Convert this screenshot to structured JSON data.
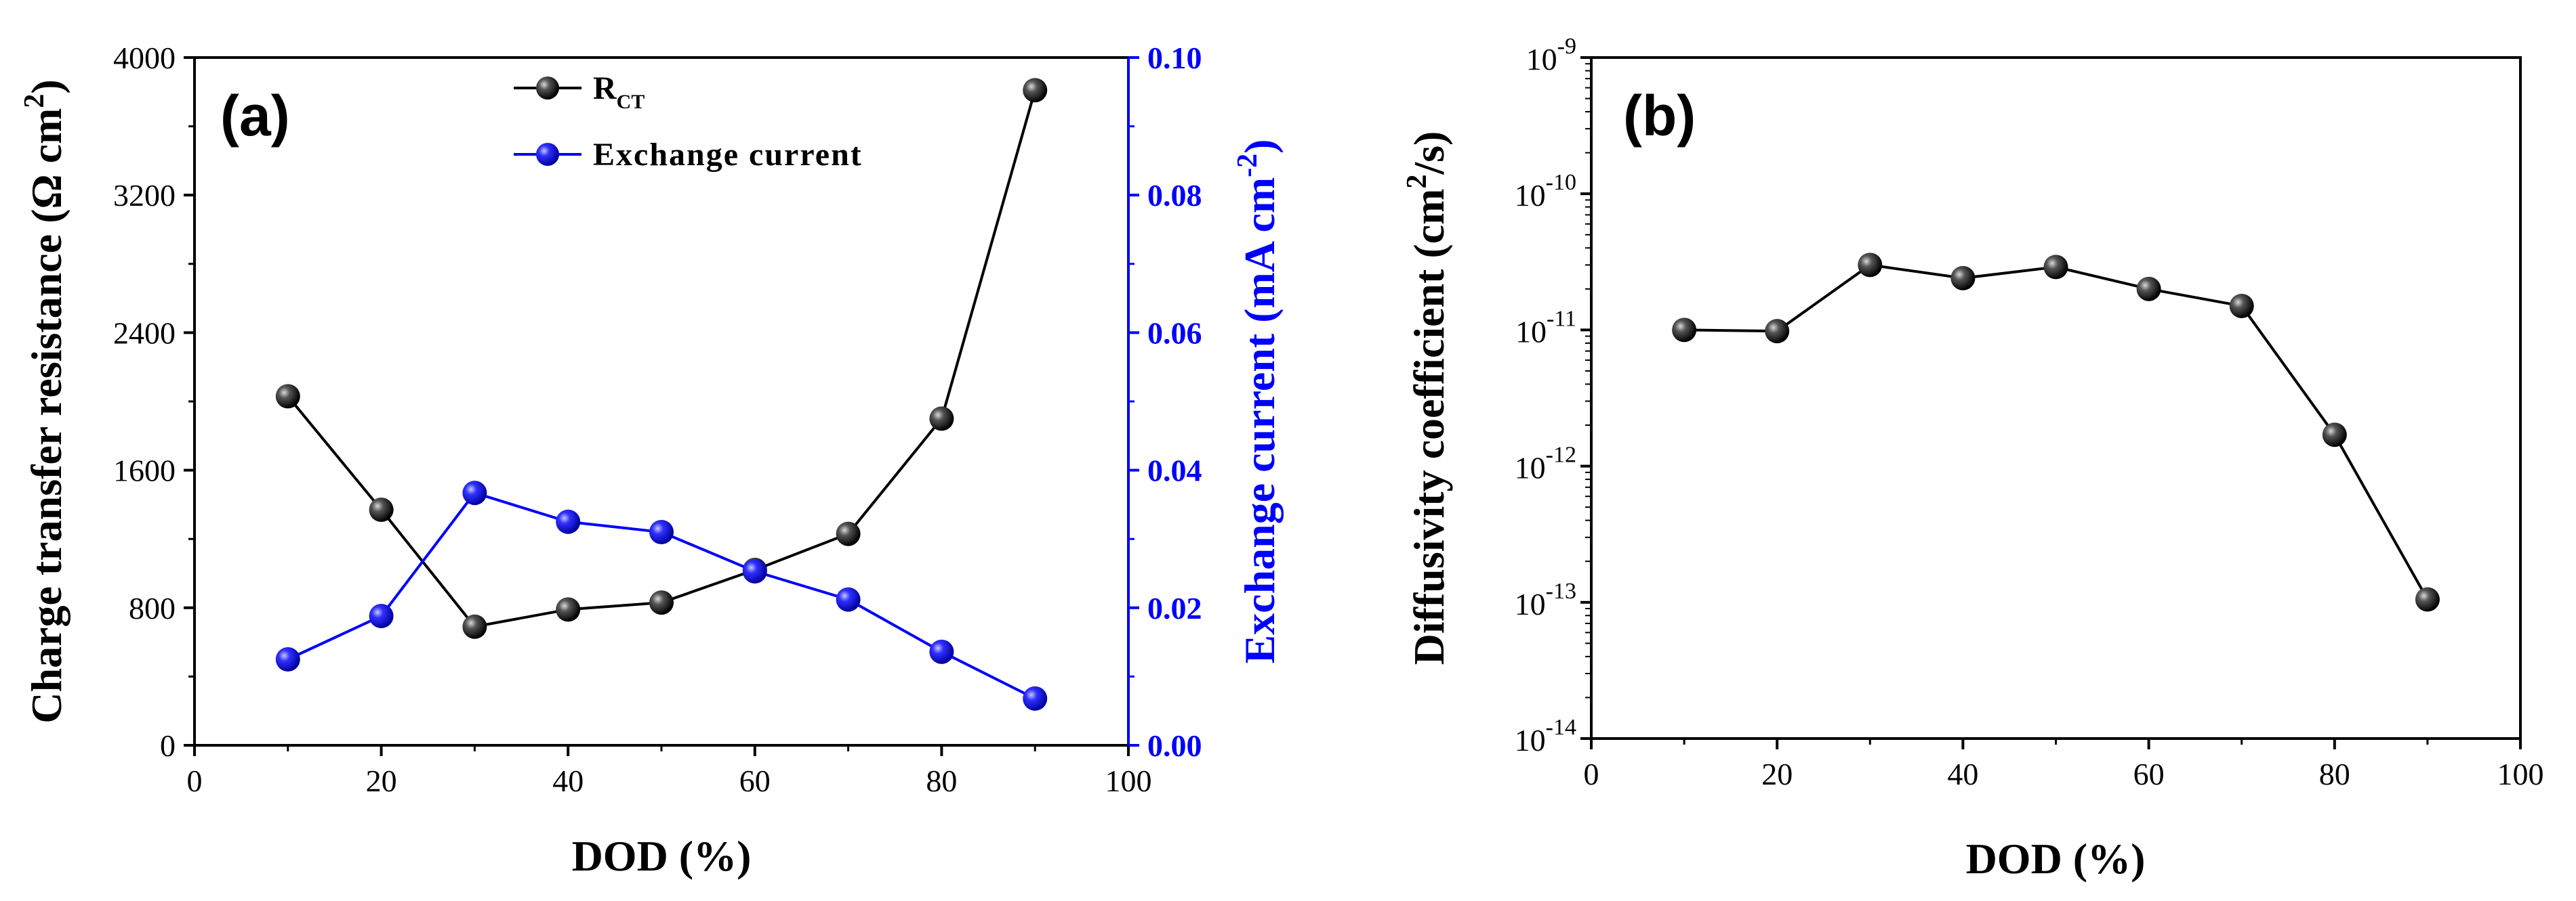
{
  "chart_data": [
    {
      "type": "line",
      "panel_label": "(a)",
      "xlabel": "DOD (%)",
      "xlim": [
        0,
        100
      ],
      "x_ticks": [
        "0",
        "20",
        "40",
        "60",
        "80",
        "100"
      ],
      "ylabel_left": "Charge transfer resistance (Ω cm²)",
      "ylabel_left_parts": {
        "main": "Charge transfer resistance (Ω cm",
        "sup": "2",
        "close": ")"
      },
      "ylim_left": [
        0,
        4000
      ],
      "y_ticks_left": [
        "0",
        "800",
        "1600",
        "2400",
        "3200",
        "4000"
      ],
      "ylabel_right": "Exchange current (mA cm⁻²)",
      "ylabel_right_parts": {
        "main": "Exchange current (mA cm",
        "sup": "-2",
        "close": ")"
      },
      "ylim_right": [
        0,
        0.1
      ],
      "y_ticks_right": [
        "0.00",
        "0.02",
        "0.04",
        "0.06",
        "0.08",
        "0.10"
      ],
      "legend_position": "top-center",
      "series": [
        {
          "name": "RCT",
          "legend_main": "R",
          "legend_sub": "CT",
          "axis": "left",
          "color": "#000000",
          "x": [
            10,
            20,
            30,
            40,
            50,
            60,
            70,
            80,
            90
          ],
          "values": [
            2030,
            1370,
            690,
            790,
            830,
            1020,
            1230,
            1900,
            3810
          ]
        },
        {
          "name": "Exchange current",
          "axis": "right",
          "color": "#0000ff",
          "x": [
            10,
            20,
            30,
            40,
            50,
            60,
            70,
            80,
            90
          ],
          "values": [
            0.0125,
            0.0188,
            0.0367,
            0.0325,
            0.031,
            0.0253,
            0.0212,
            0.0136,
            0.0068
          ]
        }
      ]
    },
    {
      "type": "line",
      "panel_label": "(b)",
      "xlabel": "DOD (%)",
      "xlim": [
        0,
        100
      ],
      "x_ticks": [
        "0",
        "20",
        "40",
        "60",
        "80",
        "100"
      ],
      "ylabel": "Diffusivity coefficient (cm²/s)",
      "ylabel_parts": {
        "main": "Diffusivity coefficient (cm",
        "sup": "2",
        "close": "/s)"
      },
      "yscale": "log",
      "ylim_log10": [
        -14,
        -9
      ],
      "y_ticks": [
        {
          "base": "10",
          "exp": "-14"
        },
        {
          "base": "10",
          "exp": "-13"
        },
        {
          "base": "10",
          "exp": "-12"
        },
        {
          "base": "10",
          "exp": "-11"
        },
        {
          "base": "10",
          "exp": "-10"
        },
        {
          "base": "10",
          "exp": "-9"
        }
      ],
      "series": [
        {
          "name": "Diffusivity coefficient",
          "color": "#000000",
          "x": [
            10,
            20,
            30,
            40,
            50,
            60,
            70,
            80,
            90
          ],
          "values": [
            1e-11,
            9.8e-12,
            3e-11,
            2.4e-11,
            2.9e-11,
            2e-11,
            1.5e-11,
            1.7e-12,
            1.05e-13
          ]
        }
      ]
    }
  ]
}
